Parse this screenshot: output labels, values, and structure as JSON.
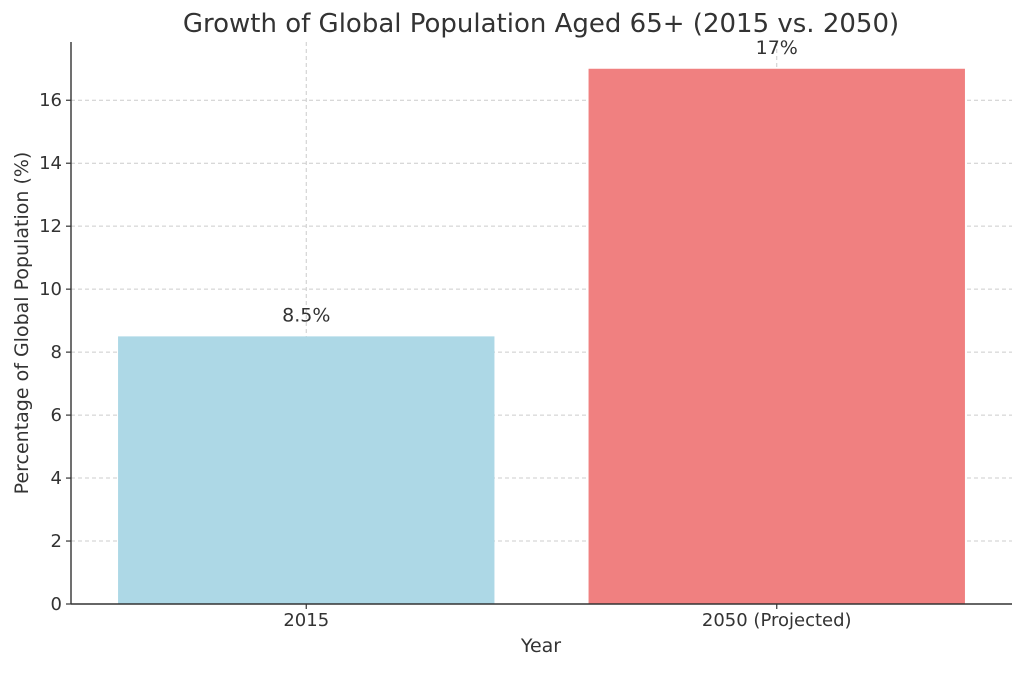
{
  "chart_data": {
    "type": "bar",
    "title": "Growth of Global Population Aged 65+ (2015 vs. 2050)",
    "xlabel": "Year",
    "ylabel": "Percentage of Global Population (%)",
    "categories": [
      "2015",
      "2050 (Projected)"
    ],
    "values": [
      8.5,
      17
    ],
    "data_labels": [
      "8.5%",
      "17%"
    ],
    "colors": [
      "#add8e6",
      "#f08080"
    ],
    "ylim": [
      0,
      17.85
    ],
    "yticks": [
      0,
      2,
      4,
      6,
      8,
      10,
      12,
      14,
      16
    ],
    "grid": true
  }
}
